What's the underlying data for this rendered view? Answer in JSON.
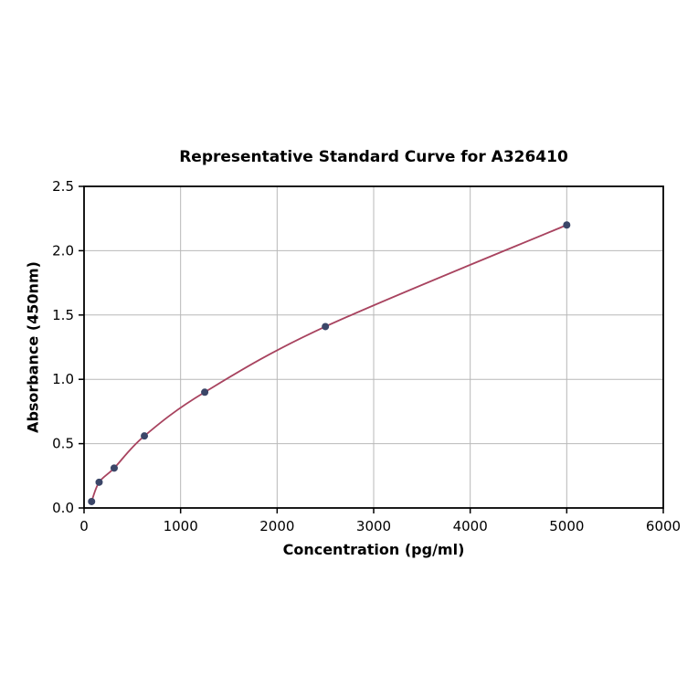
{
  "chart_data": {
    "type": "line",
    "title": "Representative Standard Curve for A326410",
    "xlabel": "Concentration (pg/ml)",
    "ylabel": "Absorbance (450nm)",
    "xlim": [
      0,
      6000
    ],
    "ylim": [
      0,
      2.5
    ],
    "x_ticks": [
      0,
      1000,
      2000,
      3000,
      4000,
      5000,
      6000
    ],
    "x_tick_labels": [
      "0",
      "1000",
      "2000",
      "3000",
      "4000",
      "5000",
      "6000"
    ],
    "y_ticks": [
      0.0,
      0.5,
      1.0,
      1.5,
      2.0,
      2.5
    ],
    "y_tick_labels": [
      "0.0",
      "0.5",
      "1.0",
      "1.5",
      "2.0",
      "2.5"
    ],
    "grid": true,
    "grid_color": "#b8b8b8",
    "axis_color": "#000000",
    "series": [
      {
        "name": "standard-curve",
        "x": [
          78,
          156,
          312,
          625,
          1250,
          2500,
          5000
        ],
        "y": [
          0.05,
          0.2,
          0.31,
          0.56,
          0.9,
          1.41,
          2.2
        ],
        "line_color": "#a8435f",
        "marker_color": "#3b4668",
        "marker": "circle",
        "marker_radius": 4
      }
    ]
  }
}
